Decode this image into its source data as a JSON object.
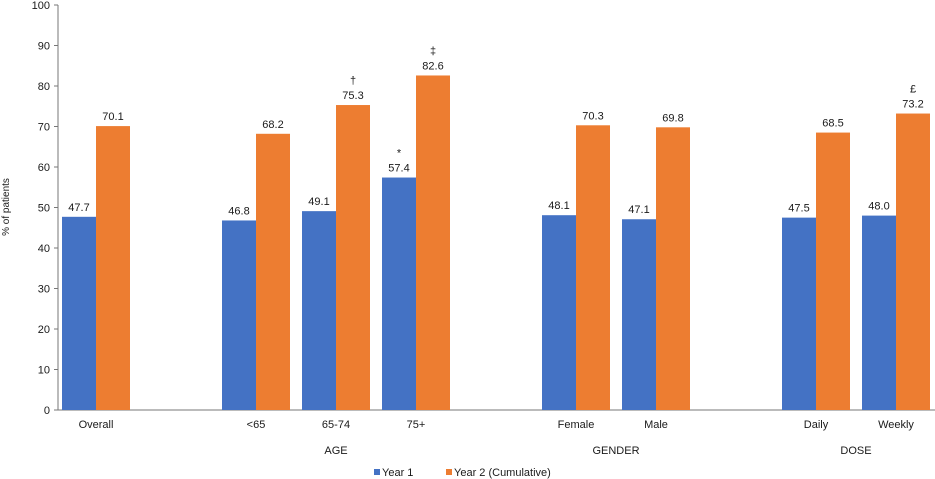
{
  "chart_data": {
    "type": "bar",
    "title": "",
    "xlabel": "",
    "ylabel": "% of patients",
    "ylim": [
      0,
      100
    ],
    "yticks": [
      0,
      10,
      20,
      30,
      40,
      50,
      60,
      70,
      80,
      90,
      100
    ],
    "categories": [
      "Overall",
      "<65",
      "65-74",
      "75+",
      "Female",
      "Male",
      "Daily",
      "Weekly"
    ],
    "groups": [
      {
        "label": "",
        "categories": [
          "Overall"
        ]
      },
      {
        "label": "AGE",
        "categories": [
          "<65",
          "65-74",
          "75+"
        ]
      },
      {
        "label": "GENDER",
        "categories": [
          "Female",
          "Male"
        ]
      },
      {
        "label": "DOSE",
        "categories": [
          "Daily",
          "Weekly"
        ]
      }
    ],
    "series": [
      {
        "name": "Year 1",
        "color": "#4472c4",
        "values": [
          47.7,
          46.8,
          49.1,
          57.4,
          48.1,
          47.1,
          47.5,
          48.0
        ],
        "labels": [
          "47.7",
          "46.8",
          "49.1",
          "57.4",
          "48.1",
          "47.1",
          "47.5",
          "48.0"
        ],
        "markers": [
          "",
          "",
          "",
          "*",
          "",
          "",
          "",
          ""
        ]
      },
      {
        "name": "Year 2 (Cumulative)",
        "color": "#ed7d31",
        "values": [
          70.1,
          68.2,
          75.3,
          82.6,
          70.3,
          69.8,
          68.5,
          73.2
        ],
        "labels": [
          "70.1",
          "68.2",
          "75.3",
          "82.6",
          "70.3",
          "69.8",
          "68.5",
          "73.2"
        ],
        "markers": [
          "",
          "",
          "†",
          "‡",
          "",
          "",
          "",
          "£"
        ]
      }
    ],
    "grid": false,
    "legend": "bottom-center"
  }
}
